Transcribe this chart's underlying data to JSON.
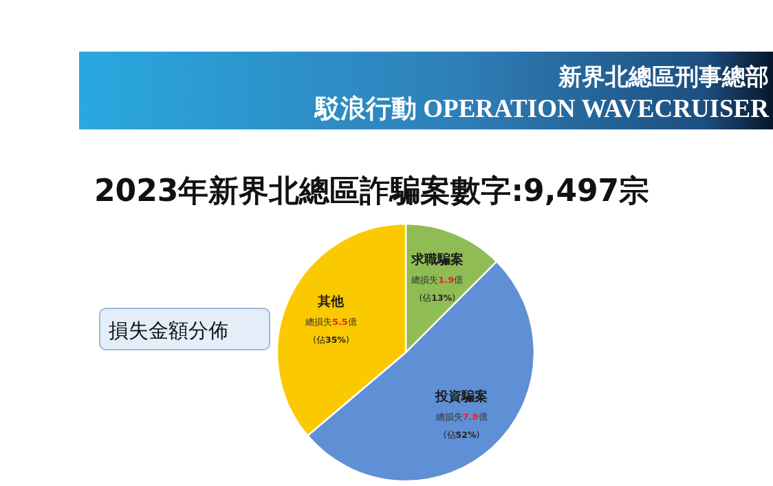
{
  "chart_data": {
    "type": "pie",
    "title": "2023年新界北總區詐騙案數字:9,497宗",
    "subtitle": "損失金額分佈",
    "categories": [
      "求職騙案",
      "投資騙案",
      "其他"
    ],
    "values": [
      1.9,
      7.8,
      5.5
    ],
    "colors": [
      "#8fbc54",
      "#5f8fd4",
      "#fbc900"
    ],
    "value_labels": [
      "總損失**1.9**億",
      "總損失**7.8**億",
      "總損失**5.5**億"
    ],
    "annotations": [
      "新界北總區刑事總部",
      "駁浪行動 OPERATION WAVECRUISER",
      {
        "text": "(佔**13%**)",
        "x": "求職騙案"
      },
      {
        "text": "(佔**52%**)",
        "x": "投資騙案"
      },
      {
        "text": "(佔**35%**)",
        "x": "其他"
      }
    ]
  }
}
